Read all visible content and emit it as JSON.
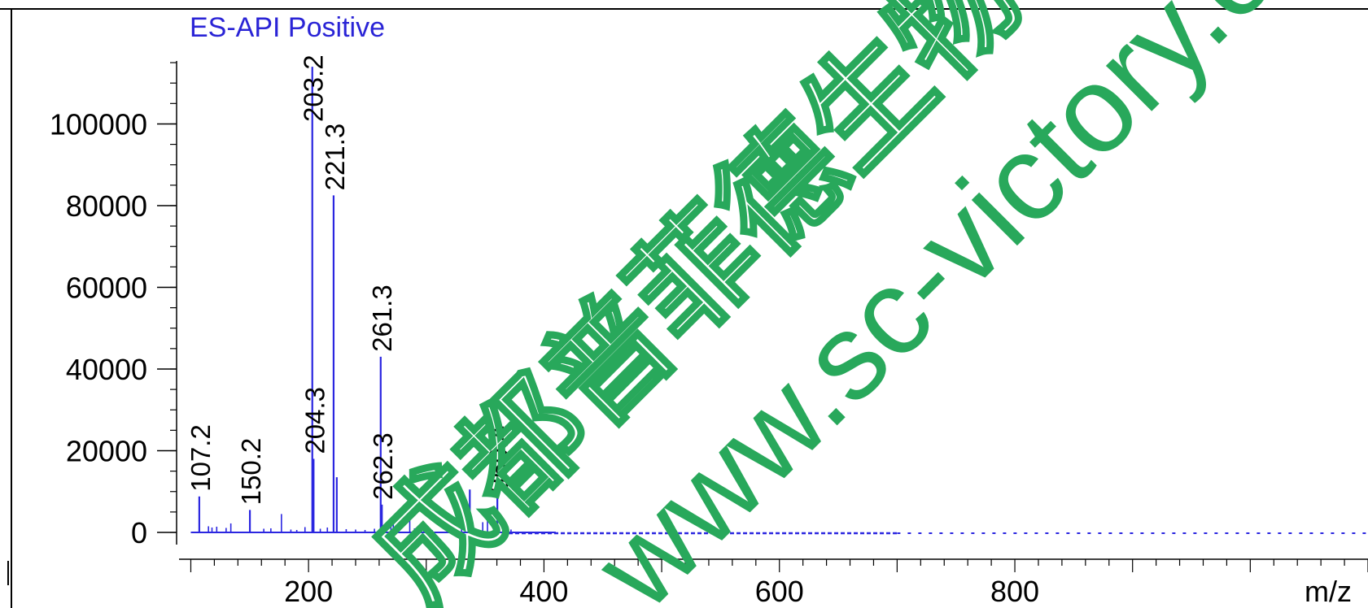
{
  "chart_data": {
    "type": "bar",
    "title": "ES-API Positive",
    "xlabel": "m/z",
    "ylabel": "",
    "xlim": [
      90,
      1100
    ],
    "ylim": [
      0,
      118000
    ],
    "x_ticks": [
      200,
      400,
      600,
      800
    ],
    "y_ticks": [
      0,
      20000,
      40000,
      60000,
      80000,
      100000
    ],
    "grid": false,
    "legend": "none",
    "series": [
      {
        "values_mz": [
          107.2,
          115,
          118,
          122,
          130,
          134,
          150.2,
          162,
          168,
          177,
          185,
          190,
          197,
          203.2,
          204.3,
          210,
          216,
          221.3,
          224,
          232,
          240,
          248,
          256,
          261.3,
          262.3,
          270,
          272,
          275,
          286,
          290,
          298,
          305,
          318,
          330,
          337,
          338,
          348,
          352,
          360.4,
          366,
          372
        ],
        "values_intensity": [
          8800,
          1500,
          1200,
          1400,
          1100,
          2200,
          5500,
          900,
          1000,
          4500,
          700,
          600,
          1300,
          114000,
          18000,
          900,
          1200,
          82500,
          13500,
          800,
          700,
          600,
          900,
          43000,
          6800,
          3200,
          2600,
          1800,
          3000,
          1000,
          700,
          600,
          800,
          3500,
          10500,
          1300,
          2500,
          3800,
          8500,
          900,
          700
        ]
      }
    ],
    "peak_labels": [
      "107.2",
      "150.2",
      "203.2",
      "204.3",
      "221.3",
      "261.3",
      "262.3",
      "360.4"
    ]
  },
  "watermark": {
    "company_cn": "成都普菲德生物科技有限公司",
    "url": "www.sc-victory.com"
  },
  "colors": {
    "spectrum": "#2b26e0",
    "title": "#2a24d6",
    "watermark": "#28a85b",
    "axis": "#000000"
  }
}
